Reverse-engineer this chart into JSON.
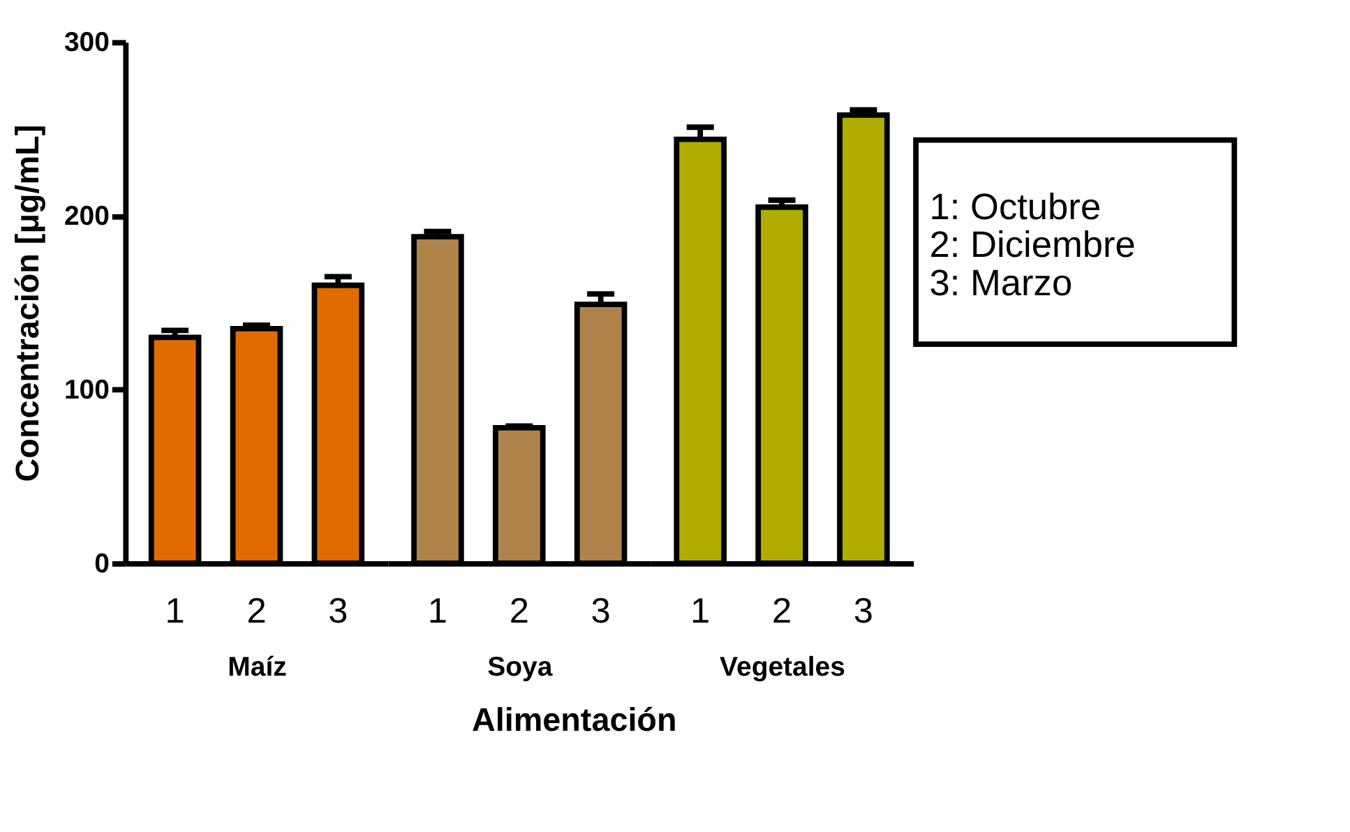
{
  "chart_data": [
    {
      "type": "bar",
      "xlabel": "Maíz",
      "ylabel": "Concentración [μg/mL]",
      "categories": [
        "1",
        "2",
        "3"
      ],
      "values": [
        130,
        135,
        160
      ],
      "errors": [
        4,
        2,
        5
      ],
      "colors": [
        "#e06c00",
        "#e06c00",
        "#e06c00"
      ],
      "ylim": [
        0,
        300
      ],
      "yticks": [
        0,
        100,
        200,
        300
      ],
      "grid": false,
      "legend": false,
      "annotations": [
        "Alimentación"
      ]
    },
    {
      "type": "bar",
      "xlabel": "Soya",
      "categories": [
        "1",
        "2",
        "3"
      ],
      "values": [
        188,
        78,
        149
      ],
      "errors": [
        3,
        1,
        6
      ],
      "colors": [
        "#b0834a",
        "#b0834a",
        "#b0834a"
      ],
      "ylim": [
        0,
        300
      ],
      "tick_labels": "x",
      "grid": false,
      "legend": false
    },
    {
      "type": "bar",
      "xlabel": "Vegetales",
      "categories": [
        "1",
        "2",
        "3"
      ],
      "values": [
        244,
        205,
        258
      ],
      "errors": [
        7,
        4,
        3
      ],
      "colors": [
        "#b0ad00",
        "#b0ad00",
        "#b0ad00"
      ],
      "ylim": [
        0,
        300
      ],
      "tick_labels": "x",
      "grid": false,
      "legend": false,
      "annotations": [
        "1: Octubre",
        "2: Diciembre",
        "3: Marzo"
      ]
    }
  ]
}
